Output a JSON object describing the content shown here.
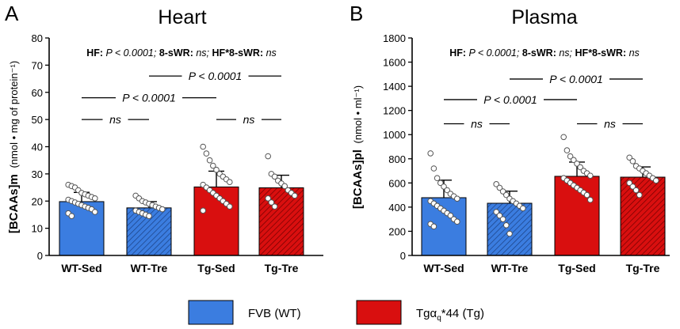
{
  "colors": {
    "wt": "#3b7de0",
    "tg": "#d90f0f",
    "axis": "#000000",
    "dot_fill": "#ffffff"
  },
  "legend": [
    {
      "label": "FVB (WT)",
      "group": "wt"
    },
    {
      "label_main": "Tgα",
      "label_sub": "q",
      "label_rest": "*44 (Tg)",
      "group": "tg"
    }
  ],
  "chart_data": [
    {
      "panel": "A",
      "type": "bar",
      "title": "Heart",
      "ylabel_main": "[BCAAs]m",
      "ylabel_unit": "(nmol • mg of protein⁻¹)",
      "ylim": [
        0,
        80
      ],
      "yticks": [
        0,
        10,
        20,
        30,
        40,
        50,
        60,
        70,
        80
      ],
      "grid": false,
      "categories": [
        "WT-Sed",
        "WT-Tre",
        "Tg-Sed",
        "Tg-Tre"
      ],
      "groups": [
        "wt",
        "wt",
        "tg",
        "tg"
      ],
      "hatched": [
        false,
        true,
        false,
        true
      ],
      "values": [
        19.8,
        17.5,
        25.2,
        24.9
      ],
      "sd": [
        3.4,
        2.3,
        5.8,
        4.6
      ],
      "points": [
        [
          26,
          25.5,
          25,
          24,
          23,
          22.5,
          22,
          21.5,
          21,
          20.5,
          20,
          19.5,
          19,
          18.5,
          18,
          17.5,
          17,
          16,
          15.5,
          14.5
        ],
        [
          22,
          21,
          20,
          19.5,
          19,
          18.5,
          18,
          17.5,
          17,
          16.5,
          16,
          15.5,
          15,
          14.5
        ],
        [
          40,
          37.5,
          35,
          33,
          31.5,
          30,
          29,
          28,
          27,
          26,
          25,
          24,
          23,
          22,
          21,
          20,
          19,
          18,
          16.5
        ],
        [
          36.5,
          30,
          29,
          27.5,
          26.5,
          25.5,
          24,
          23,
          22,
          21,
          19.5,
          18
        ]
      ],
      "stats_text": {
        "hf": "HF:",
        "hf_p": "P < 0.0001;",
        "sw": "8-sWR:",
        "sw_val": "ns;",
        "int": "HF*8-sWR:",
        "int_val": "ns"
      },
      "brackets": [
        {
          "from": 0,
          "to": 1,
          "label": "ns",
          "y": 50
        },
        {
          "from": 2,
          "to": 3,
          "label": "ns",
          "y": 50
        },
        {
          "from": 0,
          "to": 2,
          "label": "P < 0.0001",
          "y": 58
        },
        {
          "from": 1,
          "to": 3,
          "label": "P < 0.0001",
          "y": 66
        }
      ]
    },
    {
      "panel": "B",
      "type": "bar",
      "title": "Plasma",
      "ylabel_main": "[BCAAs]pl",
      "ylabel_unit": "(nmol • ml⁻¹)",
      "ylim": [
        0,
        1800
      ],
      "yticks": [
        0,
        200,
        400,
        600,
        800,
        1000,
        1200,
        1400,
        1600,
        1800
      ],
      "grid": false,
      "categories": [
        "WT-Sed",
        "WT-Tre",
        "Tg-Sed",
        "Tg-Tre"
      ],
      "groups": [
        "wt",
        "wt",
        "tg",
        "tg"
      ],
      "hatched": [
        false,
        true,
        false,
        true
      ],
      "values": [
        478,
        432,
        655,
        648
      ],
      "sd": [
        145,
        100,
        118,
        85
      ],
      "points": [
        [
          845,
          720,
          640,
          600,
          570,
          540,
          510,
          490,
          470,
          450,
          430,
          410,
          390,
          370,
          350,
          330,
          300,
          280,
          260,
          240
        ],
        [
          590,
          560,
          530,
          500,
          470,
          450,
          430,
          410,
          390,
          360,
          330,
          300,
          250,
          180
        ],
        [
          980,
          870,
          820,
          790,
          760,
          730,
          700,
          680,
          660,
          640,
          620,
          600,
          580,
          560,
          540,
          520,
          500,
          460
        ],
        [
          810,
          780,
          740,
          720,
          700,
          680,
          660,
          640,
          620,
          600,
          570,
          540,
          500
        ]
      ],
      "stats_text": {
        "hf": "HF:",
        "hf_p": "P < 0.0001;",
        "sw": "8-sWR:",
        "sw_val": "ns;",
        "int": "HF*8-sWR:",
        "int_val": "ns"
      },
      "brackets": [
        {
          "from": 0,
          "to": 1,
          "label": "ns",
          "y": 1090
        },
        {
          "from": 2,
          "to": 3,
          "label": "ns",
          "y": 1090
        },
        {
          "from": 0,
          "to": 2,
          "label": "P < 0.0001",
          "y": 1290
        },
        {
          "from": 1,
          "to": 3,
          "label": "P < 0.0001",
          "y": 1460
        }
      ]
    }
  ]
}
